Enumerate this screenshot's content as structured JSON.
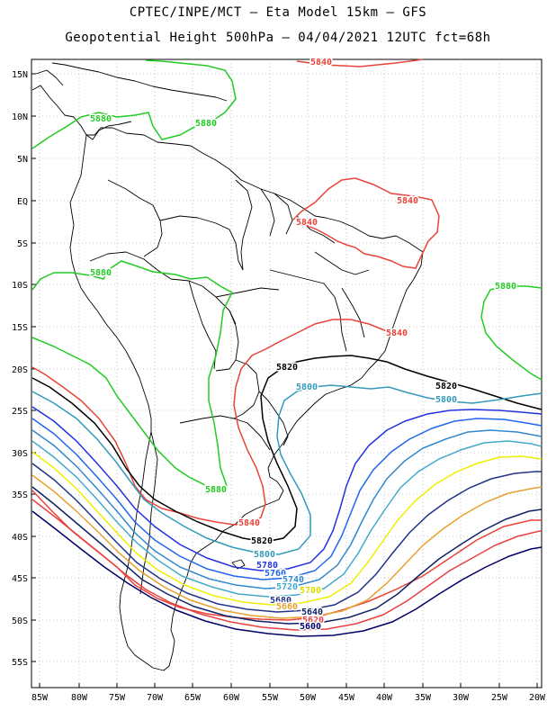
{
  "header": {
    "line1": "CPTEC/INPE/MCT –  Eta Model 15km – GFS",
    "line2": "Geopotential Height 500hPa – 04/04/2021 12UTC fct=68h"
  },
  "axes": {
    "lat_labels": [
      "15N",
      "10N",
      "5N",
      "EQ",
      "5S",
      "10S",
      "15S",
      "20S",
      "25S",
      "30S",
      "35S",
      "40S",
      "45S",
      "50S",
      "55S"
    ],
    "lon_labels": [
      "85W",
      "80W",
      "75W",
      "70W",
      "65W",
      "60W",
      "55W",
      "50W",
      "45W",
      "40W",
      "35W",
      "30W",
      "25W",
      "20W"
    ]
  },
  "colors": {
    "c5880": "#22cc22",
    "c5840": "#e8443a",
    "c5820": "#000000",
    "c5800": "#3399bb",
    "c5780": "#2233dd",
    "c5760": "#2266ee",
    "c5740": "#3388cc",
    "c5720": "#44aacc",
    "c5700": "#eeee00",
    "c5680": "#223388",
    "c5660": "#e8a030",
    "c5640": "#112266",
    "c5620": "#e84040",
    "c5600": "#000066",
    "land": "#000000"
  },
  "contour_labels": {
    "g1": "5880",
    "g2": "5880",
    "g3": "5880",
    "g4": "5880",
    "g5": "5880",
    "r1": "5840",
    "r2": "5840",
    "r3": "5840",
    "r4": "5840",
    "r5": "5840",
    "k1": "5820",
    "k2": "5820",
    "k3": "5820",
    "b1": "5800",
    "b2": "5800",
    "b3": "5800",
    "s1": "5780",
    "s2": "5760",
    "s3": "5740",
    "s4": "5720",
    "y1": "5700",
    "n1": "5680",
    "o1": "5660",
    "d1": "5640",
    "d2": "5620",
    "d3": "5600"
  }
}
